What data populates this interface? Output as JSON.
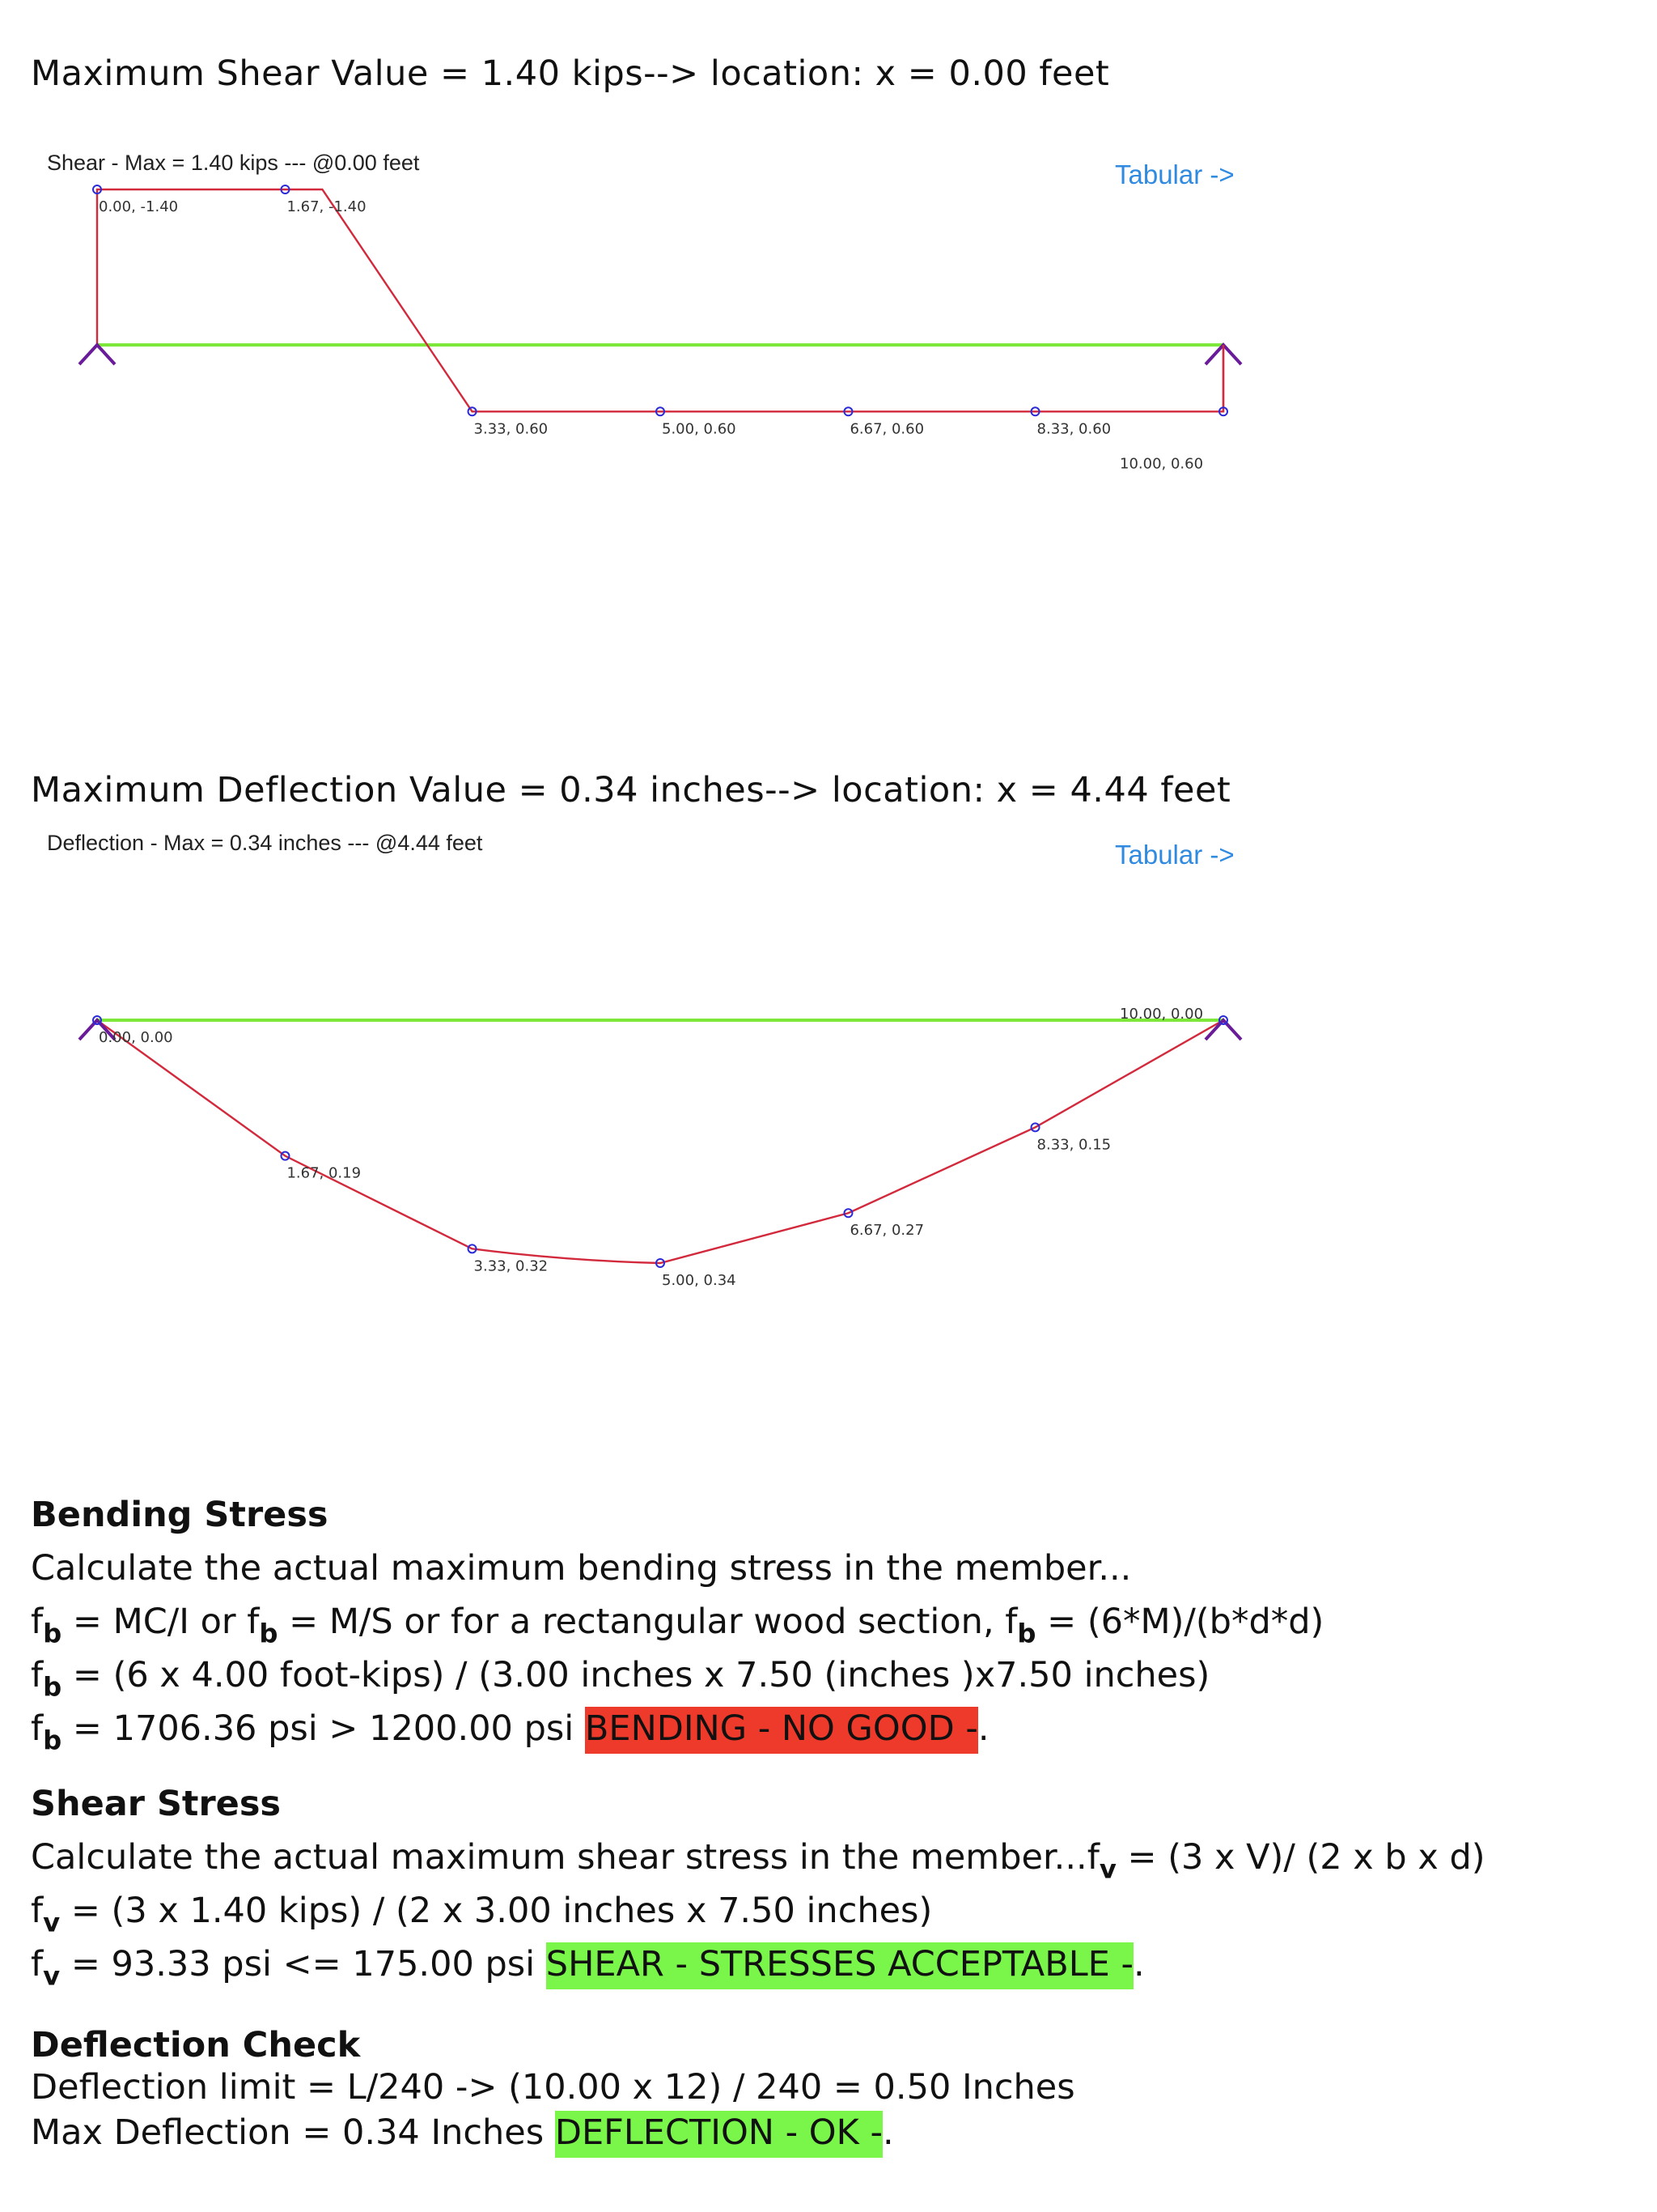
{
  "shear": {
    "heading": "Maximum Shear Value = 1.40 kips--> location: x = 0.00 feet",
    "chart_title": "Shear - Max = 1.40 kips --- @0.00 feet",
    "tabular_link": "Tabular ->",
    "colors": {
      "curve": "#d22a3c",
      "beam": "#7ee83a",
      "support": "#6a1b9a",
      "marker": "#2a2ad8"
    },
    "points": [
      {
        "label": "0.00, -1.40"
      },
      {
        "label": "1.67, -1.40"
      },
      {
        "label": "3.33, 0.60"
      },
      {
        "label": "5.00, 0.60"
      },
      {
        "label": "6.67, 0.60"
      },
      {
        "label": "8.33, 0.60"
      },
      {
        "label": "10.00, 0.60"
      }
    ]
  },
  "deflection": {
    "heading": "Maximum Deflection Value = 0.34 inches--> location: x = 4.44 feet",
    "chart_title": "Deflection - Max = 0.34 inches --- @4.44 feet",
    "tabular_link": "Tabular ->",
    "points": [
      {
        "label": "0.00, 0.00"
      },
      {
        "label": "1.67, 0.19"
      },
      {
        "label": "3.33, 0.32"
      },
      {
        "label": "5.00, 0.34"
      },
      {
        "label": "6.67, 0.27"
      },
      {
        "label": "8.33, 0.15"
      },
      {
        "label": "10.00, 0.00"
      }
    ]
  },
  "chart_data": [
    {
      "type": "line",
      "title": "Shear - Max = 1.40 kips --- @0.00 feet",
      "x": [
        0.0,
        1.67,
        3.33,
        5.0,
        6.67,
        8.33,
        10.0
      ],
      "y": [
        -1.4,
        -1.4,
        0.6,
        0.6,
        0.6,
        0.6,
        0.6
      ],
      "ylim": [
        -1.4,
        0.6
      ]
    },
    {
      "type": "line",
      "title": "Deflection - Max = 0.34 inches --- @4.44 feet",
      "x": [
        0.0,
        1.67,
        3.33,
        5.0,
        6.67,
        8.33,
        10.0
      ],
      "y": [
        0.0,
        0.19,
        0.32,
        0.34,
        0.27,
        0.15,
        0.0
      ],
      "ylim": [
        0.0,
        0.34
      ]
    }
  ],
  "bending": {
    "heading": "Bending Stress",
    "line1": "Calculate the actual maximum bending stress in the member...",
    "f": "f",
    "sub_b": "b",
    "line2_a": " = MC/I or ",
    "line2_b": " = M/S or for a rectangular wood section, ",
    "line2_c": " = (6*M)/(b*d*d)",
    "line3": " = (6 x 4.00 foot-kips) / (3.00 inches x 7.50 (inches )x7.50 inches)",
    "line4": " = 1706.36 psi > 1200.00 psi ",
    "status": "BENDING - NO GOOD -",
    "status_end": "."
  },
  "shear_stress": {
    "heading": "Shear Stress",
    "line1_a": "Calculate the actual maximum shear stress in the member...",
    "line1_b": " = (3 x V)/ (2 x b x d)",
    "f": "f",
    "sub_v": "v",
    "line2": " = (3 x 1.40 kips) / (2 x 3.00 inches x 7.50 inches)",
    "line3": " = 93.33 psi <= 175.00 psi ",
    "status": "SHEAR - STRESSES ACCEPTABLE -",
    "status_end": "."
  },
  "deflection_check": {
    "heading": "Deflection Check",
    "line1": "Deflection limit = L/240 -> (10.00 x 12) / 240 = 0.50 Inches",
    "line2": "Max Deflection = 0.34 Inches ",
    "status": "DEFLECTION - OK -",
    "status_end": "."
  }
}
